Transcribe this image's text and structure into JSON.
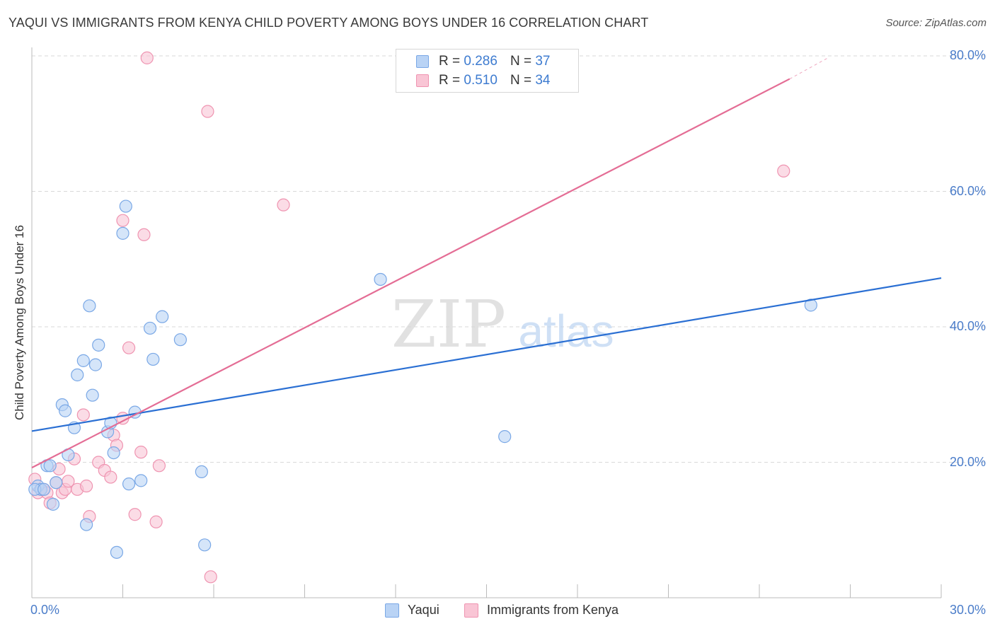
{
  "title": "YAQUI VS IMMIGRANTS FROM KENYA CHILD POVERTY AMONG BOYS UNDER 16 CORRELATION CHART",
  "source": "Source: ZipAtlas.com",
  "watermark": {
    "part1": "ZIP",
    "part2": "atlas"
  },
  "legend": {
    "r_label": "R =",
    "n_label": "N =",
    "rows": [
      {
        "name": "Yaqui",
        "r": "0.286",
        "n": "37"
      },
      {
        "name": "Immigrants from Kenya",
        "r": "0.510",
        "n": "34"
      }
    ]
  },
  "colors": {
    "yaqui_fill": "#b9d3f5",
    "yaqui_stroke": "#7aa8e6",
    "yaqui_line": "#2a6fd3",
    "kenya_fill": "#f9c5d5",
    "kenya_stroke": "#ef94b1",
    "kenya_line": "#e46d95",
    "tick_label": "#4a7cc9",
    "grid": "#d9d9d9"
  },
  "chart_data": {
    "type": "scatter",
    "title": "YAQUI VS IMMIGRANTS FROM KENYA CHILD POVERTY AMONG BOYS UNDER 16 CORRELATION CHART",
    "xlabel": "",
    "ylabel": "Child Poverty Among Boys Under 16",
    "xlim": [
      0,
      30
    ],
    "ylim": [
      0,
      80
    ],
    "x_tick_labels": [
      {
        "value": 0,
        "label": "0.0%"
      },
      {
        "value": 30,
        "label": "30.0%"
      }
    ],
    "y_tick_labels": [
      {
        "value": 20,
        "label": "20.0%"
      },
      {
        "value": 40,
        "label": "40.0%"
      },
      {
        "value": 60,
        "label": "60.0%"
      },
      {
        "value": 80,
        "label": "80.0%"
      }
    ],
    "grid": true,
    "legend_position": "top-center",
    "series": [
      {
        "name": "Yaqui",
        "trend": {
          "x": [
            0,
            30
          ],
          "y": [
            24.6,
            47.2
          ]
        },
        "points": [
          [
            0.2,
            16.5
          ],
          [
            0.3,
            16.0
          ],
          [
            0.5,
            19.5
          ],
          [
            0.6,
            19.5
          ],
          [
            0.7,
            13.8
          ],
          [
            0.8,
            17.0
          ],
          [
            1.0,
            28.5
          ],
          [
            1.1,
            27.6
          ],
          [
            1.2,
            21.1
          ],
          [
            1.4,
            25.1
          ],
          [
            1.5,
            32.9
          ],
          [
            1.7,
            35.0
          ],
          [
            1.8,
            10.8
          ],
          [
            1.9,
            43.1
          ],
          [
            2.0,
            29.9
          ],
          [
            2.1,
            34.4
          ],
          [
            2.2,
            37.3
          ],
          [
            2.5,
            24.5
          ],
          [
            2.6,
            25.8
          ],
          [
            2.7,
            21.4
          ],
          [
            2.8,
            6.7
          ],
          [
            3.0,
            53.8
          ],
          [
            3.1,
            57.8
          ],
          [
            3.2,
            16.8
          ],
          [
            3.4,
            27.4
          ],
          [
            3.6,
            17.3
          ],
          [
            3.9,
            39.8
          ],
          [
            4.0,
            35.2
          ],
          [
            4.3,
            41.5
          ],
          [
            4.9,
            38.1
          ],
          [
            5.6,
            18.6
          ],
          [
            5.7,
            7.8
          ],
          [
            11.5,
            47.0
          ],
          [
            15.6,
            23.8
          ],
          [
            25.7,
            43.2
          ],
          [
            0.1,
            16.0
          ],
          [
            0.4,
            16.0
          ]
        ]
      },
      {
        "name": "Immigrants from Kenya",
        "trend": {
          "x": [
            0,
            25.0,
            26.3
          ],
          "y": [
            19.2,
            76.6,
            79.8
          ]
        },
        "points": [
          [
            0.1,
            17.5
          ],
          [
            0.2,
            15.5
          ],
          [
            0.3,
            16.0
          ],
          [
            0.4,
            16.0
          ],
          [
            0.5,
            15.5
          ],
          [
            0.6,
            14.0
          ],
          [
            0.8,
            17.0
          ],
          [
            0.9,
            19.0
          ],
          [
            1.0,
            15.5
          ],
          [
            1.1,
            16.0
          ],
          [
            1.2,
            17.2
          ],
          [
            1.4,
            20.5
          ],
          [
            1.5,
            16.0
          ],
          [
            1.7,
            27.0
          ],
          [
            1.8,
            16.5
          ],
          [
            1.9,
            12.0
          ],
          [
            2.2,
            20.0
          ],
          [
            2.4,
            18.8
          ],
          [
            2.6,
            17.8
          ],
          [
            2.7,
            24.0
          ],
          [
            2.8,
            22.5
          ],
          [
            3.0,
            26.5
          ],
          [
            3.0,
            55.7
          ],
          [
            3.2,
            36.9
          ],
          [
            3.4,
            12.3
          ],
          [
            3.6,
            21.5
          ],
          [
            3.7,
            53.6
          ],
          [
            3.8,
            79.7
          ],
          [
            4.1,
            11.2
          ],
          [
            4.2,
            19.5
          ],
          [
            5.8,
            71.8
          ],
          [
            5.9,
            3.1
          ],
          [
            8.3,
            58.0
          ],
          [
            24.8,
            63.0
          ]
        ]
      }
    ]
  }
}
